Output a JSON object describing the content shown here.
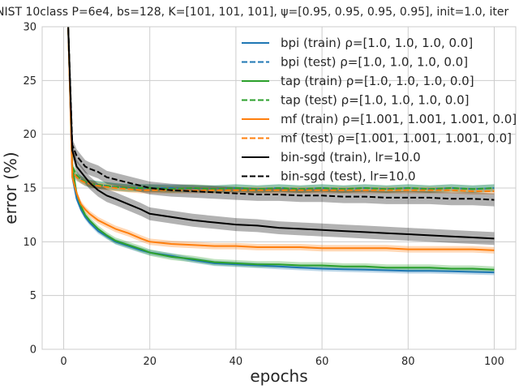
{
  "chart_data": {
    "type": "line",
    "title": "NIST 10class P=6e4, bs=128, K=[101, 101, 101], ψ=[0.95, 0.95, 0.95, 0.95], init=1.0, iter",
    "xlabel": "epochs",
    "ylabel": "error (%)",
    "xlim": [
      -5,
      105
    ],
    "ylim": [
      0,
      30
    ],
    "xticks": [
      0,
      20,
      40,
      60,
      80,
      100
    ],
    "yticks": [
      0,
      5,
      10,
      15,
      20,
      25,
      30
    ],
    "grid": true,
    "legend_position": "top-right",
    "x": [
      1,
      2,
      3,
      4,
      5,
      6,
      8,
      10,
      12,
      15,
      18,
      20,
      25,
      30,
      35,
      40,
      45,
      50,
      55,
      60,
      65,
      70,
      75,
      80,
      85,
      90,
      95,
      100
    ],
    "series": [
      {
        "name": "bpi (train) ρ=[1.0, 1.0, 1.0, 0.0]",
        "color": "#1f77b4",
        "dash": "solid",
        "band": 0.25,
        "values": [
          30.5,
          16.0,
          14.0,
          13.0,
          12.3,
          11.8,
          11.0,
          10.5,
          10.0,
          9.6,
          9.2,
          9.0,
          8.7,
          8.3,
          8.0,
          7.9,
          7.8,
          7.7,
          7.6,
          7.5,
          7.45,
          7.4,
          7.35,
          7.3,
          7.3,
          7.25,
          7.2,
          7.15
        ]
      },
      {
        "name": "bpi (test) ρ=[1.0, 1.0, 1.0, 0.0]",
        "color": "#1f77b4",
        "dash": "dashed",
        "band": 0.35,
        "values": [
          30.5,
          16.5,
          16.0,
          15.8,
          15.5,
          15.4,
          15.3,
          15.2,
          15.1,
          15.0,
          15.0,
          15.0,
          15.0,
          14.9,
          14.9,
          15.0,
          14.9,
          15.0,
          14.9,
          15.0,
          14.9,
          15.0,
          14.9,
          15.0,
          14.9,
          15.0,
          14.9,
          15.0
        ]
      },
      {
        "name": "tap (train) ρ=[1.0, 1.0, 1.0, 0.0]",
        "color": "#2ca02c",
        "dash": "solid",
        "band": 0.3,
        "values": [
          30.5,
          17.0,
          14.5,
          13.3,
          12.5,
          12.0,
          11.2,
          10.6,
          10.1,
          9.7,
          9.3,
          9.0,
          8.6,
          8.4,
          8.1,
          8.0,
          7.9,
          7.9,
          7.8,
          7.8,
          7.7,
          7.7,
          7.6,
          7.6,
          7.6,
          7.5,
          7.5,
          7.4
        ]
      },
      {
        "name": "tap (test) ρ=[1.0, 1.0, 1.0, 0.0]",
        "color": "#2ca02c",
        "dash": "dashed",
        "band": 0.35,
        "values": [
          30.5,
          17.0,
          16.2,
          15.8,
          15.6,
          15.4,
          15.3,
          15.2,
          15.1,
          15.0,
          15.0,
          15.0,
          14.9,
          15.0,
          14.9,
          15.0,
          14.9,
          15.0,
          14.9,
          15.0,
          14.9,
          15.0,
          14.9,
          15.0,
          14.9,
          15.0,
          14.9,
          15.0
        ]
      },
      {
        "name": "mf (train) ρ=[1.001, 1.001, 1.001, 0.0]",
        "color": "#ff7f0e",
        "dash": "solid",
        "band": 0.3,
        "values": [
          30.5,
          16.0,
          14.5,
          13.5,
          13.0,
          12.6,
          12.0,
          11.6,
          11.2,
          10.8,
          10.3,
          10.0,
          9.8,
          9.7,
          9.6,
          9.6,
          9.5,
          9.5,
          9.5,
          9.4,
          9.4,
          9.4,
          9.4,
          9.3,
          9.3,
          9.3,
          9.3,
          9.2
        ]
      },
      {
        "name": "mf (test) ρ=[1.001, 1.001, 1.001, 0.0]",
        "color": "#ff7f0e",
        "dash": "dashed",
        "band": 0.3,
        "values": [
          30.5,
          16.5,
          16.0,
          15.7,
          15.5,
          15.4,
          15.2,
          15.1,
          15.0,
          14.9,
          14.8,
          14.8,
          14.8,
          14.8,
          14.8,
          14.8,
          14.8,
          14.8,
          14.8,
          14.8,
          14.8,
          14.8,
          14.8,
          14.8,
          14.8,
          14.8,
          14.7,
          14.7
        ]
      },
      {
        "name": "bin-sgd (train), lr=10.0",
        "color": "#000000",
        "dash": "solid",
        "band": 0.6,
        "values": [
          30.5,
          18.5,
          17.0,
          16.5,
          16.0,
          15.5,
          14.8,
          14.3,
          14.0,
          13.5,
          13.0,
          12.6,
          12.3,
          12.0,
          11.8,
          11.6,
          11.5,
          11.3,
          11.2,
          11.1,
          11.0,
          10.9,
          10.8,
          10.7,
          10.6,
          10.5,
          10.4,
          10.3
        ]
      },
      {
        "name": "bin-sgd (test), lr=10.0",
        "color": "#000000",
        "dash": "dashed",
        "band": 0.6,
        "values": [
          30.5,
          19.0,
          18.0,
          17.5,
          17.0,
          16.8,
          16.5,
          16.0,
          15.8,
          15.5,
          15.2,
          15.0,
          14.8,
          14.7,
          14.6,
          14.5,
          14.4,
          14.4,
          14.3,
          14.3,
          14.2,
          14.2,
          14.1,
          14.1,
          14.1,
          14.0,
          14.0,
          13.9
        ]
      }
    ]
  }
}
